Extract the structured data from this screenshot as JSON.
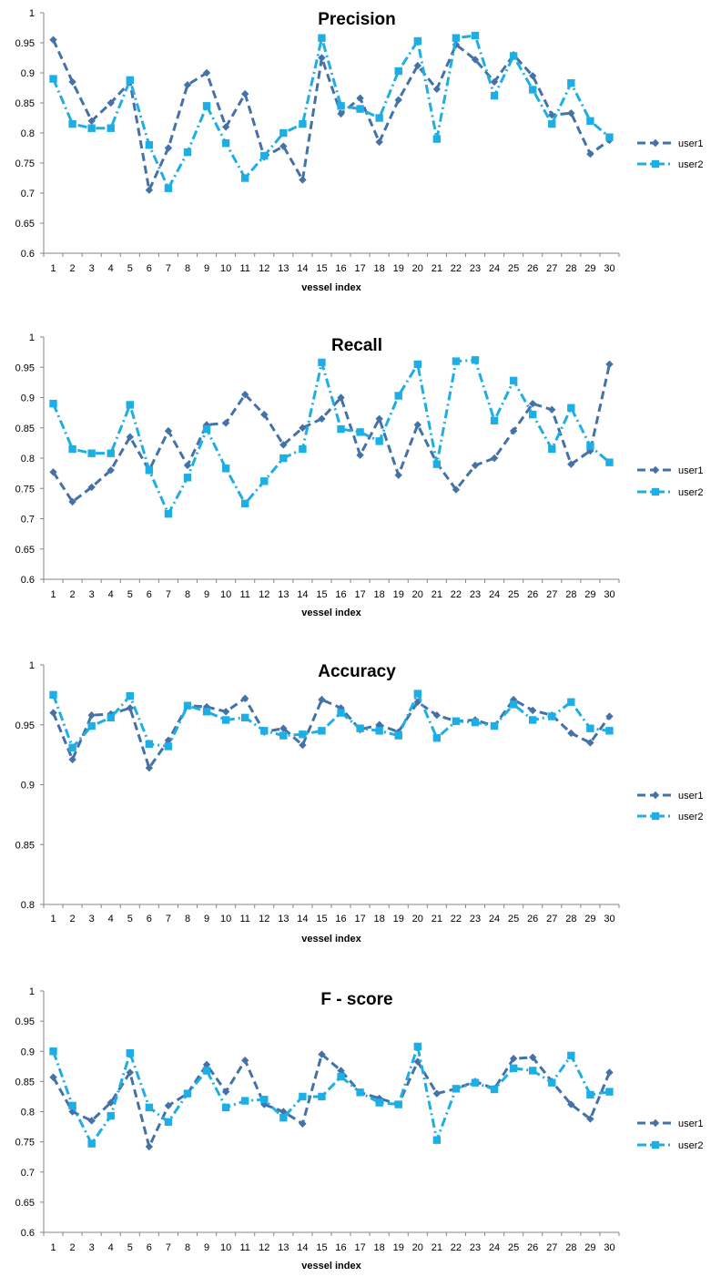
{
  "colors": {
    "user1": "#4472A8",
    "user2": "#1EAEE6",
    "axis": "#868686"
  },
  "chart_data": [
    {
      "type": "line",
      "title": "Precision",
      "xlabel": "vessel index",
      "ylabel": "",
      "ylim": [
        0.6,
        1
      ],
      "yticks": [
        "0.6",
        "0.65",
        "0.7",
        "0.75",
        "0.8",
        "0.85",
        "0.9",
        "0.95",
        "1"
      ],
      "categories": [
        "1",
        "2",
        "3",
        "4",
        "5",
        "6",
        "7",
        "8",
        "9",
        "10",
        "11",
        "12",
        "13",
        "14",
        "15",
        "16",
        "17",
        "18",
        "19",
        "20",
        "21",
        "22",
        "23",
        "24",
        "25",
        "26",
        "27",
        "28",
        "29",
        "30"
      ],
      "grid": false,
      "legend": "right",
      "series": [
        {
          "name": "user1",
          "marker": "diamond",
          "style": "dash",
          "values": [
            0.955,
            0.885,
            0.82,
            0.85,
            0.885,
            0.705,
            0.775,
            0.88,
            0.9,
            0.81,
            0.865,
            0.76,
            0.778,
            0.722,
            0.925,
            0.832,
            0.858,
            0.785,
            0.855,
            0.912,
            0.873,
            0.947,
            0.922,
            0.885,
            0.93,
            0.895,
            0.83,
            0.833,
            0.765,
            0.788
          ]
        },
        {
          "name": "user2",
          "marker": "square",
          "style": "dashdot",
          "values": [
            0.89,
            0.815,
            0.808,
            0.808,
            0.888,
            0.78,
            0.708,
            0.768,
            0.845,
            0.783,
            0.725,
            0.762,
            0.8,
            0.815,
            0.958,
            0.845,
            0.84,
            0.825,
            0.903,
            0.953,
            0.79,
            0.958,
            0.962,
            0.862,
            0.928,
            0.872,
            0.815,
            0.883,
            0.82,
            0.793
          ]
        }
      ]
    },
    {
      "type": "line",
      "title": "Recall",
      "xlabel": "vessel index",
      "ylabel": "",
      "ylim": [
        0.6,
        1
      ],
      "yticks": [
        "0.6",
        "0.65",
        "0.7",
        "0.75",
        "0.8",
        "0.85",
        "0.9",
        "0.95",
        "1"
      ],
      "categories": [
        "1",
        "2",
        "3",
        "4",
        "5",
        "6",
        "7",
        "8",
        "9",
        "10",
        "11",
        "12",
        "13",
        "14",
        "15",
        "16",
        "17",
        "18",
        "19",
        "20",
        "21",
        "22",
        "23",
        "24",
        "25",
        "26",
        "27",
        "28",
        "29",
        "30"
      ],
      "grid": false,
      "legend": "right",
      "series": [
        {
          "name": "user1",
          "marker": "diamond",
          "style": "dash",
          "values": [
            0.777,
            0.728,
            0.752,
            0.78,
            0.835,
            0.78,
            0.845,
            0.788,
            0.855,
            0.858,
            0.905,
            0.872,
            0.822,
            0.85,
            0.865,
            0.9,
            0.805,
            0.865,
            0.772,
            0.855,
            0.792,
            0.748,
            0.788,
            0.8,
            0.845,
            0.89,
            0.88,
            0.79,
            0.812,
            0.955
          ]
        },
        {
          "name": "user2",
          "marker": "square",
          "style": "dashdot",
          "values": [
            0.89,
            0.815,
            0.808,
            0.808,
            0.888,
            0.78,
            0.708,
            0.768,
            0.848,
            0.783,
            0.725,
            0.762,
            0.8,
            0.815,
            0.958,
            0.848,
            0.843,
            0.828,
            0.903,
            0.955,
            0.79,
            0.96,
            0.962,
            0.862,
            0.928,
            0.872,
            0.815,
            0.883,
            0.82,
            0.793
          ]
        }
      ]
    },
    {
      "type": "line",
      "title": "Accuracy",
      "xlabel": "vessel index",
      "ylabel": "",
      "ylim": [
        0.8,
        1
      ],
      "yticks": [
        "0.8",
        "0.85",
        "0.9",
        "0.95",
        "1"
      ],
      "categories": [
        "1",
        "2",
        "3",
        "4",
        "5",
        "6",
        "7",
        "8",
        "9",
        "10",
        "11",
        "12",
        "13",
        "14",
        "15",
        "16",
        "17",
        "18",
        "19",
        "20",
        "21",
        "22",
        "23",
        "24",
        "25",
        "26",
        "27",
        "28",
        "29",
        "30"
      ],
      "grid": false,
      "legend": "right",
      "series": [
        {
          "name": "user1",
          "marker": "diamond",
          "style": "dash",
          "values": [
            0.96,
            0.921,
            0.958,
            0.959,
            0.964,
            0.914,
            0.937,
            0.966,
            0.965,
            0.961,
            0.972,
            0.944,
            0.947,
            0.933,
            0.971,
            0.964,
            0.946,
            0.95,
            0.944,
            0.969,
            0.958,
            0.953,
            0.954,
            0.949,
            0.971,
            0.962,
            0.958,
            0.943,
            0.935,
            0.957
          ]
        },
        {
          "name": "user2",
          "marker": "square",
          "style": "dashdot",
          "values": [
            0.975,
            0.931,
            0.949,
            0.956,
            0.974,
            0.934,
            0.932,
            0.966,
            0.961,
            0.954,
            0.956,
            0.945,
            0.941,
            0.942,
            0.945,
            0.96,
            0.947,
            0.945,
            0.941,
            0.976,
            0.939,
            0.953,
            0.952,
            0.949,
            0.967,
            0.954,
            0.957,
            0.969,
            0.947,
            0.945
          ]
        }
      ]
    },
    {
      "type": "line",
      "title": "F - score",
      "xlabel": "vessel index",
      "ylabel": "",
      "ylim": [
        0.6,
        1
      ],
      "yticks": [
        "0.6",
        "0.65",
        "0.7",
        "0.75",
        "0.8",
        "0.85",
        "0.9",
        "0.95",
        "1"
      ],
      "categories": [
        "1",
        "2",
        "3",
        "4",
        "5",
        "6",
        "7",
        "8",
        "9",
        "10",
        "11",
        "12",
        "13",
        "14",
        "15",
        "16",
        "17",
        "18",
        "19",
        "20",
        "21",
        "22",
        "23",
        "24",
        "25",
        "26",
        "27",
        "28",
        "29",
        "30"
      ],
      "grid": false,
      "legend": "right",
      "series": [
        {
          "name": "user1",
          "marker": "diamond",
          "style": "dash",
          "values": [
            0.857,
            0.8,
            0.785,
            0.815,
            0.865,
            0.742,
            0.81,
            0.83,
            0.878,
            0.833,
            0.885,
            0.812,
            0.8,
            0.78,
            0.895,
            0.868,
            0.832,
            0.822,
            0.812,
            0.883,
            0.83,
            0.838,
            0.85,
            0.838,
            0.888,
            0.89,
            0.85,
            0.812,
            0.788,
            0.865
          ]
        },
        {
          "name": "user2",
          "marker": "square",
          "style": "dashdot",
          "values": [
            0.9,
            0.81,
            0.747,
            0.793,
            0.897,
            0.807,
            0.783,
            0.83,
            0.868,
            0.807,
            0.818,
            0.82,
            0.79,
            0.825,
            0.825,
            0.858,
            0.832,
            0.815,
            0.812,
            0.908,
            0.753,
            0.838,
            0.848,
            0.837,
            0.872,
            0.868,
            0.848,
            0.893,
            0.828,
            0.833
          ]
        }
      ]
    }
  ]
}
